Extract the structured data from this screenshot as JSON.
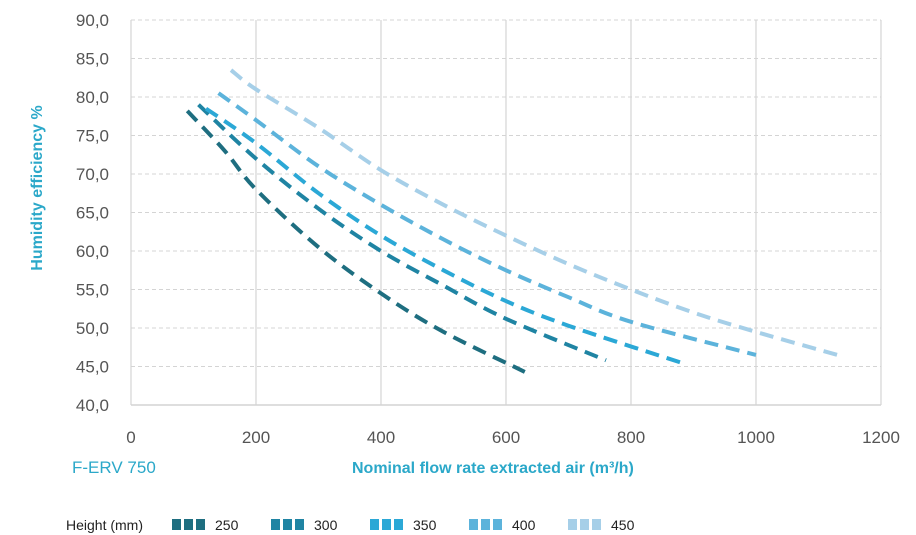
{
  "chart_data": {
    "type": "line",
    "model_label": "F-ERV 750",
    "xlabel": "Nominal flow rate extracted air (m³/h)",
    "ylabel": "Humidity efficiency %",
    "xlim": [
      0,
      1200
    ],
    "ylim": [
      40,
      90
    ],
    "x_ticks": [
      0,
      200,
      400,
      600,
      800,
      1000,
      1200
    ],
    "y_ticks": [
      "40,0",
      "45,0",
      "50,0",
      "55,0",
      "60,0",
      "65,0",
      "70,0",
      "75,0",
      "80,0",
      "85,0",
      "90,0"
    ],
    "y_tick_values": [
      40,
      45,
      50,
      55,
      60,
      65,
      70,
      75,
      80,
      85,
      90
    ],
    "grid": {
      "vertical": "solid",
      "horizontal": "dashed"
    },
    "line_style": "dashed",
    "legend": {
      "title": "Height (mm)",
      "position": "bottom"
    },
    "series": [
      {
        "name": "250",
        "color": "#1E6E80",
        "points": [
          [
            90,
            78.2
          ],
          [
            150,
            73.0
          ],
          [
            200,
            68.0
          ],
          [
            300,
            60.5
          ],
          [
            400,
            54.5
          ],
          [
            500,
            49.5
          ],
          [
            630,
            44.3
          ]
        ]
      },
      {
        "name": "300",
        "color": "#1F84A3",
        "points": [
          [
            108,
            79.0
          ],
          [
            200,
            72.0
          ],
          [
            300,
            65.5
          ],
          [
            400,
            60.0
          ],
          [
            500,
            55.5
          ],
          [
            600,
            51.2
          ],
          [
            760,
            45.8
          ]
        ]
      },
      {
        "name": "350",
        "color": "#2BA8D6",
        "points": [
          [
            120,
            78.5
          ],
          [
            200,
            74.0
          ],
          [
            300,
            67.5
          ],
          [
            400,
            62.0
          ],
          [
            500,
            57.5
          ],
          [
            600,
            53.5
          ],
          [
            700,
            50.3
          ],
          [
            880,
            45.5
          ]
        ]
      },
      {
        "name": "400",
        "color": "#5CB3DB",
        "points": [
          [
            140,
            80.5
          ],
          [
            200,
            77.0
          ],
          [
            300,
            71.0
          ],
          [
            400,
            66.0
          ],
          [
            500,
            61.5
          ],
          [
            600,
            57.5
          ],
          [
            700,
            54.0
          ],
          [
            800,
            50.8
          ],
          [
            1000,
            46.5
          ]
        ]
      },
      {
        "name": "450",
        "color": "#A6CFE8",
        "points": [
          [
            160,
            83.5
          ],
          [
            200,
            81.0
          ],
          [
            300,
            76.0
          ],
          [
            400,
            70.5
          ],
          [
            500,
            66.0
          ],
          [
            600,
            62.0
          ],
          [
            700,
            58.3
          ],
          [
            800,
            55.0
          ],
          [
            900,
            52.0
          ],
          [
            1000,
            49.5
          ],
          [
            1130,
            46.5
          ]
        ]
      }
    ]
  }
}
